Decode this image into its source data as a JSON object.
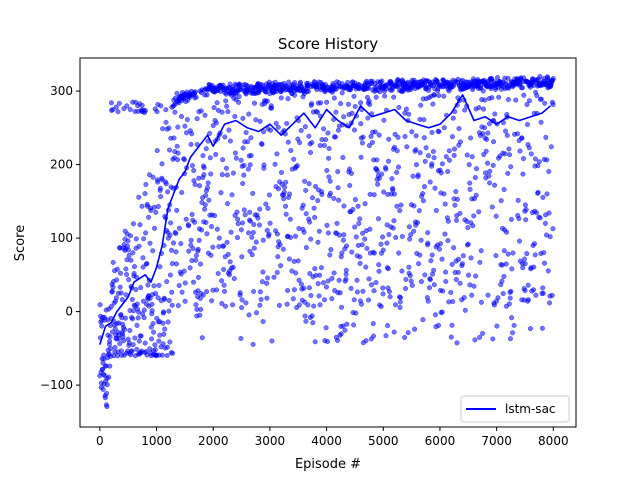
{
  "chart_data": {
    "type": "scatter",
    "title": "Score History",
    "xlabel": "Episode #",
    "ylabel": "Score",
    "xlim": [
      -350,
      8400
    ],
    "ylim": [
      -157,
      345
    ],
    "xticks": [
      0,
      1000,
      2000,
      3000,
      4000,
      5000,
      6000,
      7000,
      8000
    ],
    "yticks": [
      -100,
      0,
      100,
      200,
      300
    ],
    "grid": false,
    "legend": {
      "placement": "bottom-right",
      "entries": [
        "lstm-sac"
      ]
    },
    "colors": {
      "points": "#0000ff",
      "line": "#0000ff"
    },
    "series": [
      {
        "kind": "scatter",
        "description_values": "per-episode scores (subsampled)",
        "x_range": [
          0,
          8000
        ],
        "clusters": [
          {
            "x": [
              0,
              200
            ],
            "y": [
              -135,
              10
            ]
          },
          {
            "x": [
              200,
              1200
            ],
            "y": [
              -70,
              280
            ]
          },
          {
            "x": [
              1200,
              2000
            ],
            "y": [
              -55,
              305
            ]
          },
          {
            "x": [
              2000,
              8000
            ],
            "y": [
              -45,
              320
            ]
          }
        ]
      },
      {
        "kind": "line",
        "name": "lstm-sac",
        "x": [
          0,
          100,
          200,
          300,
          400,
          500,
          600,
          700,
          800,
          900,
          1000,
          1100,
          1200,
          1300,
          1400,
          1500,
          1600,
          1700,
          1800,
          1900,
          2000,
          2200,
          2400,
          2600,
          2800,
          3000,
          3200,
          3400,
          3600,
          3800,
          4000,
          4200,
          4400,
          4600,
          4800,
          5000,
          5200,
          5400,
          5600,
          5800,
          6000,
          6200,
          6400,
          6600,
          6800,
          7000,
          7200,
          7400,
          7600,
          7800,
          7950
        ],
        "y": [
          -45,
          -20,
          -15,
          0,
          10,
          20,
          40,
          45,
          50,
          40,
          60,
          90,
          140,
          160,
          180,
          190,
          210,
          220,
          230,
          240,
          225,
          255,
          260,
          250,
          245,
          255,
          240,
          255,
          270,
          250,
          275,
          260,
          250,
          280,
          265,
          270,
          275,
          260,
          255,
          250,
          255,
          270,
          295,
          260,
          265,
          255,
          265,
          260,
          265,
          270,
          280
        ]
      }
    ]
  }
}
